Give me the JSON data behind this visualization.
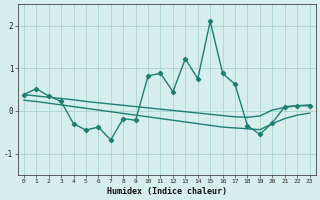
{
  "xlabel": "Humidex (Indice chaleur)",
  "xlim": [
    -0.5,
    23.5
  ],
  "ylim": [
    -1.5,
    2.5
  ],
  "yticks": [
    -1,
    0,
    1,
    2
  ],
  "xticks": [
    0,
    1,
    2,
    3,
    4,
    5,
    6,
    7,
    8,
    9,
    10,
    11,
    12,
    13,
    14,
    15,
    16,
    17,
    18,
    19,
    20,
    21,
    22,
    23
  ],
  "bg_color": "#d6efed",
  "grid_color": "#aad4cf",
  "line_color": "#1e7e72",
  "line_width": 1.0,
  "marker": "D",
  "marker_size": 2.2,
  "series1_x": [
    0,
    1,
    2,
    3,
    4,
    5,
    6,
    7,
    8,
    9,
    10,
    11,
    12,
    13,
    14,
    15,
    16,
    17,
    18,
    19,
    20,
    21,
    22,
    23
  ],
  "series1_y": [
    0.38,
    0.52,
    0.35,
    0.22,
    -0.3,
    -0.45,
    -0.38,
    -0.68,
    -0.18,
    -0.22,
    0.82,
    0.88,
    0.45,
    1.22,
    0.75,
    2.1,
    0.88,
    0.62,
    -0.35,
    -0.55,
    -0.28,
    0.1,
    0.12,
    0.12
  ],
  "series2_x": [
    0,
    1,
    2,
    3,
    4,
    5,
    6,
    7,
    8,
    9,
    10,
    11,
    12,
    13,
    14,
    15,
    16,
    17,
    18,
    19,
    20,
    21,
    22,
    23
  ],
  "series2_y": [
    0.38,
    0.35,
    0.32,
    0.29,
    0.26,
    0.22,
    0.19,
    0.16,
    0.13,
    0.1,
    0.07,
    0.04,
    0.01,
    -0.02,
    -0.05,
    -0.08,
    -0.11,
    -0.14,
    -0.15,
    -0.12,
    0.02,
    0.08,
    0.12,
    0.14
  ],
  "series3_x": [
    0,
    1,
    2,
    3,
    4,
    5,
    6,
    7,
    8,
    9,
    10,
    11,
    12,
    13,
    14,
    15,
    16,
    17,
    18,
    19,
    20,
    21,
    22,
    23
  ],
  "series3_y": [
    0.25,
    0.22,
    0.18,
    0.14,
    0.1,
    0.06,
    0.02,
    -0.02,
    -0.06,
    -0.1,
    -0.14,
    -0.18,
    -0.22,
    -0.26,
    -0.3,
    -0.34,
    -0.38,
    -0.4,
    -0.42,
    -0.44,
    -0.3,
    -0.18,
    -0.1,
    -0.05
  ]
}
